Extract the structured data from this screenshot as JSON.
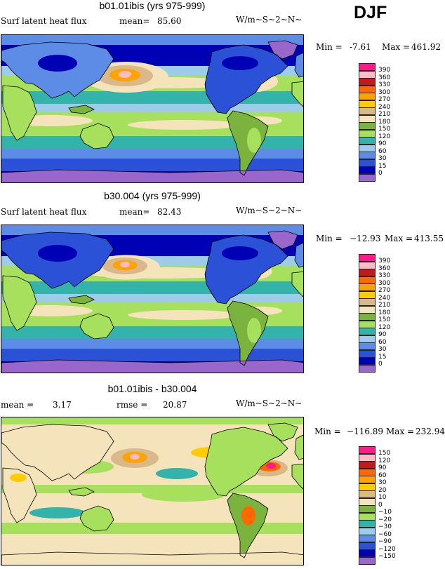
{
  "season": "DJF",
  "colors": [
    "#9966cc",
    "#0000b4",
    "#2b52d6",
    "#5c8ce6",
    "#9ccce8",
    "#33b3a9",
    "#a6e05c",
    "#7ab33d",
    "#f5e3bc",
    "#d9b98c",
    "#ffcc00",
    "#ffa300",
    "#ff6a00",
    "#c21a1a",
    "#ffbcc8",
    "#ff1a8c"
  ],
  "chart_data": [
    {
      "type": "heatmap",
      "title": "b01.01ibis (yrs 975-999)",
      "variable": "Surf latent heat flux",
      "mean_label": "mean=",
      "mean_value": "85.60",
      "units": "W/m~S~2~N~",
      "min_label": "Min =",
      "min_value": "-7.61",
      "max_label": "Max =",
      "max_value": "461.92",
      "levels": [
        "390",
        "360",
        "330",
        "300",
        "270",
        "240",
        "210",
        "180",
        "150",
        "120",
        "90",
        "60",
        "30",
        "15",
        "0"
      ]
    },
    {
      "type": "heatmap",
      "title": "b30.004 (yrs 975-999)",
      "variable": "Surf latent heat flux",
      "mean_label": "mean=",
      "mean_value": "82.43",
      "units": "W/m~S~2~N~",
      "min_label": "Min =",
      "min_value": "−12.93",
      "max_label": "Max =",
      "max_value": "413.55",
      "levels": [
        "390",
        "360",
        "330",
        "300",
        "270",
        "240",
        "210",
        "180",
        "150",
        "120",
        "90",
        "60",
        "30",
        "15",
        "0"
      ]
    },
    {
      "type": "heatmap",
      "title": "b01.01ibis - b30.004",
      "mean_label": "mean =",
      "mean_value": "3.17",
      "rmse_label": "rmse =",
      "rmse_value": "20.87",
      "units": "W/m~S~2~N~",
      "min_label": "Min =",
      "min_value": "−116.89",
      "max_label": "Max =",
      "max_value": "232.94",
      "levels": [
        "150",
        "120",
        "90",
        "60",
        "30",
        "20",
        "10",
        "0",
        "−10",
        "−20",
        "−30",
        "−60",
        "−90",
        "−120",
        "−150"
      ]
    }
  ]
}
